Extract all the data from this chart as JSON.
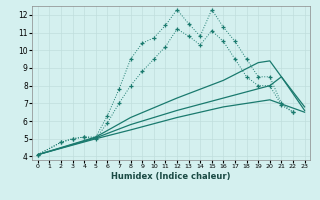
{
  "xlabel": "Humidex (Indice chaleur)",
  "bg_color": "#d4f0ef",
  "grid_color": "#c0dedd",
  "line_color": "#1a7a6e",
  "xlim": [
    -0.5,
    23.5
  ],
  "ylim": [
    3.8,
    12.5
  ],
  "xticks": [
    0,
    1,
    2,
    3,
    4,
    5,
    6,
    7,
    8,
    9,
    10,
    11,
    12,
    13,
    14,
    15,
    16,
    17,
    18,
    19,
    20,
    21,
    22,
    23
  ],
  "yticks": [
    4,
    5,
    6,
    7,
    8,
    9,
    10,
    11,
    12
  ],
  "line1_x": [
    0,
    2,
    3,
    4,
    5,
    6,
    7,
    8,
    9,
    10,
    11,
    12,
    13,
    14,
    15,
    16,
    17,
    18,
    19,
    20,
    21,
    22
  ],
  "line1_y": [
    4.1,
    4.8,
    5.0,
    5.1,
    5.1,
    6.3,
    7.8,
    9.5,
    10.4,
    10.7,
    11.4,
    12.3,
    11.5,
    10.8,
    12.3,
    11.3,
    10.5,
    9.5,
    8.5,
    8.5,
    7.0,
    6.5
  ],
  "line2_x": [
    0,
    2,
    3,
    4,
    5,
    6,
    7,
    8,
    9,
    10,
    11,
    12,
    13,
    14,
    15,
    16,
    17,
    18,
    19,
    20,
    21,
    22
  ],
  "line2_y": [
    4.1,
    4.8,
    5.0,
    5.1,
    5.0,
    5.9,
    7.0,
    8.0,
    8.8,
    9.5,
    10.2,
    11.2,
    10.8,
    10.3,
    11.1,
    10.5,
    9.5,
    8.5,
    8.0,
    8.0,
    6.9,
    6.5
  ],
  "line3_x": [
    0,
    5,
    8,
    12,
    16,
    19,
    20,
    21,
    23
  ],
  "line3_y": [
    4.1,
    5.1,
    6.2,
    7.3,
    8.3,
    9.3,
    9.4,
    8.5,
    6.8
  ],
  "line4_x": [
    0,
    5,
    8,
    12,
    16,
    20,
    21,
    23
  ],
  "line4_y": [
    4.1,
    5.05,
    5.8,
    6.6,
    7.3,
    8.0,
    8.5,
    6.6
  ],
  "line5_x": [
    0,
    5,
    8,
    12,
    16,
    20,
    23
  ],
  "line5_y": [
    4.1,
    5.0,
    5.5,
    6.2,
    6.8,
    7.2,
    6.5
  ]
}
